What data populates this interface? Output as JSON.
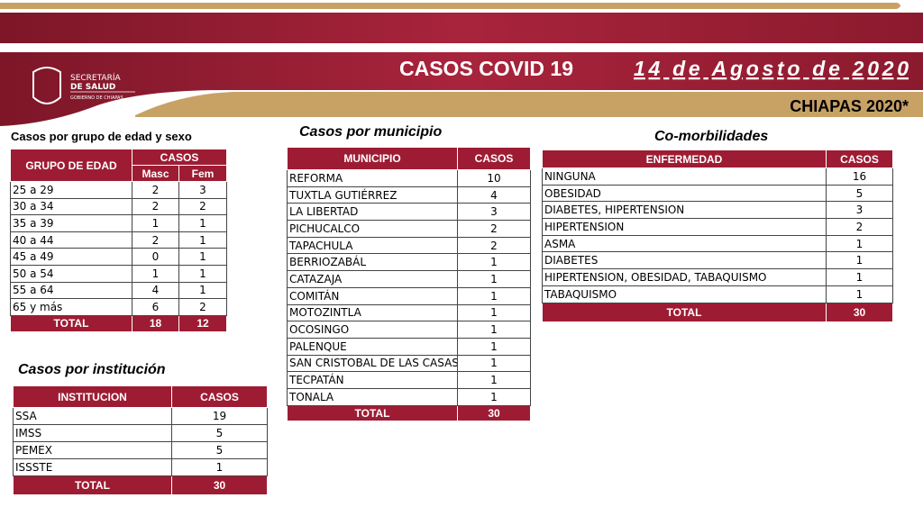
{
  "header": {
    "logo_line1": "SECRETARÍA",
    "logo_line2": "DE SALUD",
    "logo_line3": "GOBIERNO DE CHIAPAS",
    "title": "CASOS COVID 19",
    "date": "14 de Agosto de 2020",
    "region": "CHIAPAS 2020*"
  },
  "edad": {
    "title": "Casos por grupo de edad y sexo",
    "headers": [
      "GRUPO DE EDAD",
      "CASOS",
      "Masc",
      "Fem"
    ],
    "rows": [
      [
        "25 a 29",
        2,
        3
      ],
      [
        "30 a 34",
        2,
        2
      ],
      [
        "35 a 39",
        1,
        1
      ],
      [
        "40 a 44",
        2,
        1
      ],
      [
        "45 a 49",
        0,
        1
      ],
      [
        "50 a 54",
        1,
        1
      ],
      [
        "55 a 64",
        4,
        1
      ],
      [
        "65 y más",
        6,
        2
      ]
    ],
    "total": [
      "TOTAL",
      18,
      12
    ]
  },
  "institucion": {
    "title": "Casos por institución",
    "headers": [
      "INSTITUCION",
      "CASOS"
    ],
    "rows": [
      [
        "SSA",
        19
      ],
      [
        "IMSS",
        5
      ],
      [
        "PEMEX",
        5
      ],
      [
        "ISSSTE",
        1
      ]
    ],
    "total": [
      "TOTAL",
      30
    ]
  },
  "municipio": {
    "title": "Casos por municipio",
    "headers": [
      "MUNICIPIO",
      "CASOS"
    ],
    "rows": [
      [
        "REFORMA",
        10
      ],
      [
        "TUXTLA GUTIÉRREZ",
        4
      ],
      [
        "LA LIBERTAD",
        3
      ],
      [
        "PICHUCALCO",
        2
      ],
      [
        "TAPACHULA",
        2
      ],
      [
        "BERRIOZABÁL",
        1
      ],
      [
        "CATAZAJA",
        1
      ],
      [
        "COMITÁN",
        1
      ],
      [
        "MOTOZINTLA",
        1
      ],
      [
        "OCOSINGO",
        1
      ],
      [
        "PALENQUE",
        1
      ],
      [
        "SAN CRISTOBAL DE LAS CASAS",
        1
      ],
      [
        "TECPATÁN",
        1
      ],
      [
        "TONALA",
        1
      ]
    ],
    "total": [
      "TOTAL",
      30
    ]
  },
  "comorbilidades": {
    "title": "Co-morbilidades",
    "headers": [
      "ENFERMEDAD",
      "CASOS"
    ],
    "rows": [
      [
        "NINGUNA",
        16
      ],
      [
        "OBESIDAD",
        5
      ],
      [
        "DIABETES, HIPERTENSION",
        3
      ],
      [
        "HIPERTENSION",
        2
      ],
      [
        "ASMA",
        1
      ],
      [
        "DIABETES",
        1
      ],
      [
        "HIPERTENSION, OBESIDAD, TABAQUISMO",
        1
      ],
      [
        "TABAQUISMO",
        1
      ]
    ],
    "total": [
      "TOTAL",
      30
    ]
  }
}
